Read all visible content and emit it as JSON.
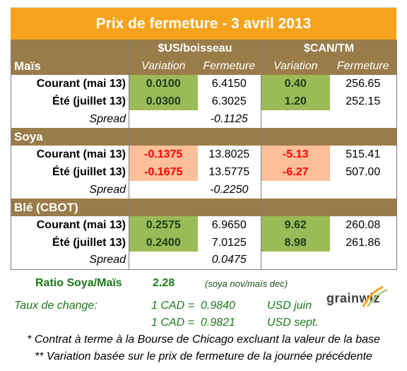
{
  "title": "Prix de fermeture - 3 avril 2013",
  "headers": {
    "usd": "$US/boisseau",
    "cad": "$CAN/TM",
    "variation": "Variation",
    "fermeture": "Fermeture"
  },
  "sections": {
    "mais": {
      "name": "Maïs",
      "rows": [
        {
          "label": "Courant (mai 13)",
          "us_var": "0.0100",
          "us_close": "6.4150",
          "cad_var": "0.40",
          "cad_close": "256.65"
        },
        {
          "label": "Été (juillet 13)",
          "us_var": "0.0300",
          "us_close": "6.3025",
          "cad_var": "1.20",
          "cad_close": "252.15"
        }
      ],
      "spread_label": "Spread",
      "spread_value": "-0.1125"
    },
    "soya": {
      "name": "Soya",
      "rows": [
        {
          "label": "Courant (mai 13)",
          "us_var": "-0.1375",
          "us_close": "13.8025",
          "cad_var": "-5.13",
          "cad_close": "515.41"
        },
        {
          "label": "Été (juillet 13)",
          "us_var": "-0.1675",
          "us_close": "13.5775",
          "cad_var": "-6.27",
          "cad_close": "507.00"
        }
      ],
      "spread_label": "Spread",
      "spread_value": "-0.2250"
    },
    "ble": {
      "name": "Blé (CBOT)",
      "rows": [
        {
          "label": "Courant (mai 13)",
          "us_var": "0.2575",
          "us_close": "6.9650",
          "cad_var": "9.62",
          "cad_close": "260.08"
        },
        {
          "label": "Été (juillet 13)",
          "us_var": "0.2400",
          "us_close": "7.0125",
          "cad_var": "8.98",
          "cad_close": "261.86"
        }
      ],
      "spread_label": "Spread",
      "spread_value": "0.0475"
    }
  },
  "ratio": {
    "label": "Ratio Soya/Maïs",
    "value": "2.28",
    "note": "(soya nov/maïs dec)"
  },
  "exchange": {
    "label": "Taux de change:",
    "line1_prefix": "1 CAD =",
    "line1_value": "0.9840",
    "line1_suffix": "USD juin",
    "line2_prefix": "1 CAD =",
    "line2_value": "0.9821",
    "line2_suffix": "USD sept."
  },
  "logo": "grainwiz",
  "notes": [
    "* Contrat à terme à la Bourse de Chicago excluant la valeur de la base",
    "** Variation basée sur le prix de fermeture de la journée précédente"
  ],
  "colors": {
    "title_bg": "#f5a31a",
    "section_bg": "#9a7c4a",
    "positive_bg": "#9bbb59",
    "negative_bg": "#fbbf99",
    "negative_text": "#ff0000",
    "green_text": "#1a7a1a"
  }
}
